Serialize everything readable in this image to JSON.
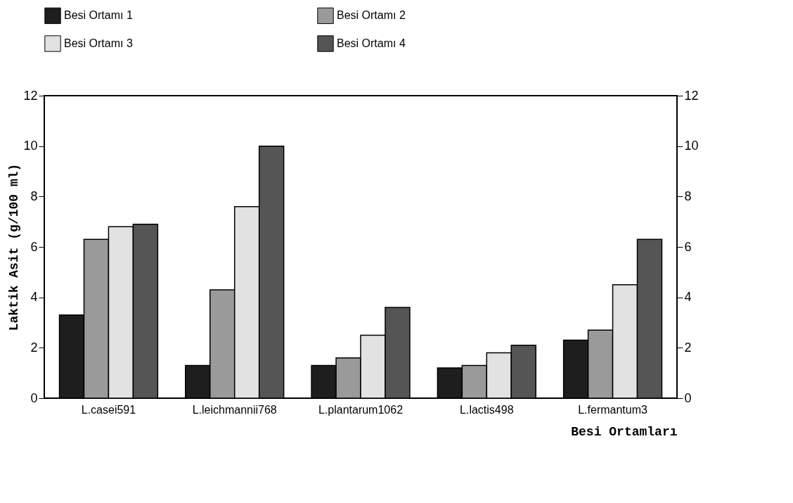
{
  "chart_data": {
    "type": "bar",
    "xlabel": "Besi Ortamları",
    "ylabel": "Laktik Asit (g/100 ml)",
    "categories": [
      "L.casei591",
      "L.leichmannii768",
      "L.plantarum1062",
      "L.lactis498",
      "L.fermantum3"
    ],
    "series": [
      {
        "name": "Besi Ortamı 1",
        "color": "#1e1e1e",
        "values": [
          3.3,
          1.3,
          1.3,
          1.2,
          2.3
        ]
      },
      {
        "name": "Besi Ortamı 2",
        "color": "#9a9a9a",
        "values": [
          6.3,
          4.3,
          1.6,
          1.3,
          2.7
        ]
      },
      {
        "name": "Besi Ortamı 3",
        "color": "#e2e2e2",
        "values": [
          6.8,
          7.6,
          2.5,
          1.8,
          4.5
        ]
      },
      {
        "name": "Besi Ortamı 4",
        "color": "#555555",
        "values": [
          6.9,
          10,
          3.6,
          2.1,
          6.3
        ]
      }
    ],
    "ylim": [
      0,
      12
    ],
    "yticks": [
      0,
      2,
      4,
      6,
      8,
      10,
      12
    ],
    "y2lim": [
      0,
      12
    ],
    "y2ticks": [
      0,
      2,
      4,
      6,
      8,
      10,
      12
    ],
    "legend": "top",
    "grid": false
  }
}
